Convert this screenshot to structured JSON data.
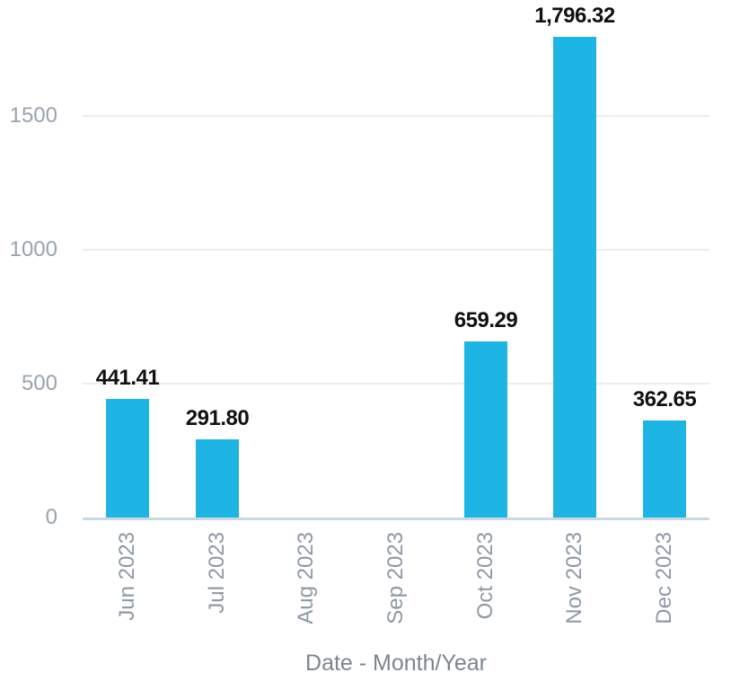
{
  "chart_data": {
    "type": "bar",
    "title": "",
    "xlabel": "Date - Month/Year",
    "ylabel": "",
    "categories": [
      "Jun 2023",
      "Jul 2023",
      "Aug 2023",
      "Sep 2023",
      "Oct 2023",
      "Nov 2023",
      "Dec 2023"
    ],
    "values": [
      441.41,
      291.8,
      0,
      0,
      659.29,
      1796.32,
      362.65
    ],
    "value_labels": [
      "441.41",
      "291.80",
      "",
      "",
      "659.29",
      "1,796.32",
      "362.65"
    ],
    "yticks": [
      {
        "value": 0,
        "label": "0"
      },
      {
        "value": 500,
        "label": "500"
      },
      {
        "value": 1000,
        "label": "1000"
      },
      {
        "value": 1500,
        "label": "1500"
      }
    ],
    "ylim": [
      0,
      1935
    ],
    "grid": true,
    "legend": false,
    "colors": {
      "bar": "#1EB4E4",
      "gridline": "#EDEDED",
      "axis_line": "#CBD8E2",
      "y_tick_text": "#99A3AE",
      "x_tick_text": "#8E98A4",
      "axis_title_text": "#7C8591",
      "value_label_text": "#111111",
      "background": "#FFFFFF"
    }
  }
}
